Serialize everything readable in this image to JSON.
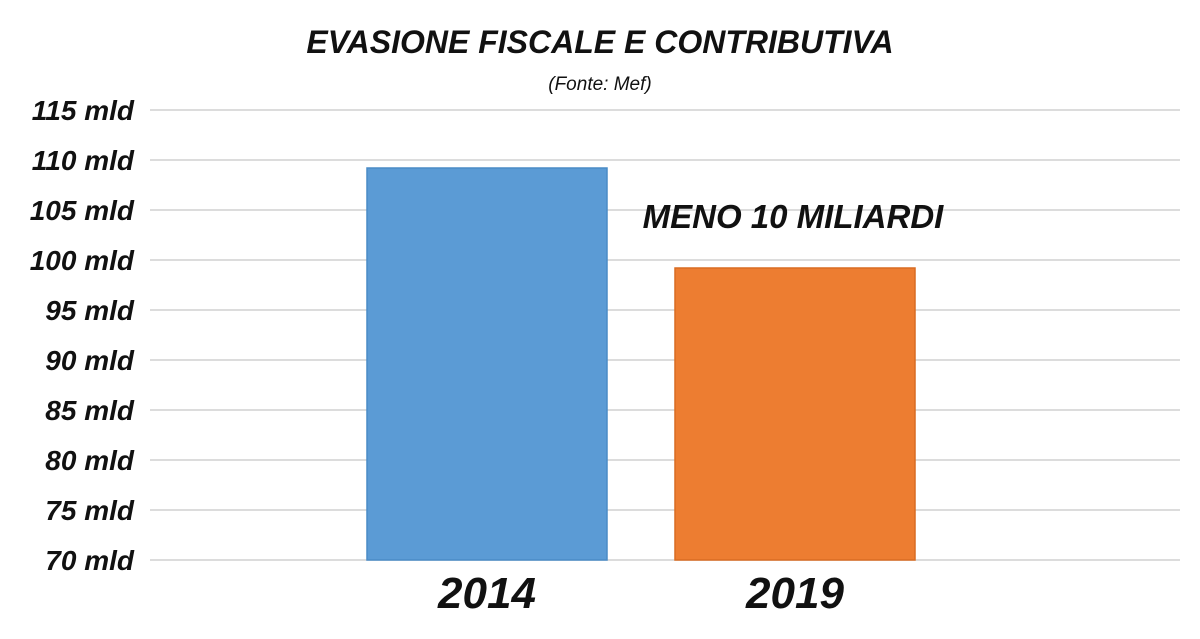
{
  "chart_data": {
    "type": "bar",
    "title": "EVASIONE FISCALE E CONTRIBUTIVA",
    "subtitle": "(Fonte: Mef)",
    "categories": [
      "2014",
      "2019"
    ],
    "values": [
      109.2,
      99.2
    ],
    "series_colors": [
      "#5b9bd5",
      "#ed7d31"
    ],
    "yticks": [
      "70 mld",
      "75 mld",
      "80 mld",
      "85 mld",
      "90 mld",
      "95 mld",
      "100 mld",
      "105 mld",
      "110 mld",
      "115 mld"
    ],
    "ylim": [
      70,
      115
    ],
    "grid": true,
    "annotation": "MENO 10 MILIARDI",
    "xlabel": "",
    "ylabel": ""
  }
}
